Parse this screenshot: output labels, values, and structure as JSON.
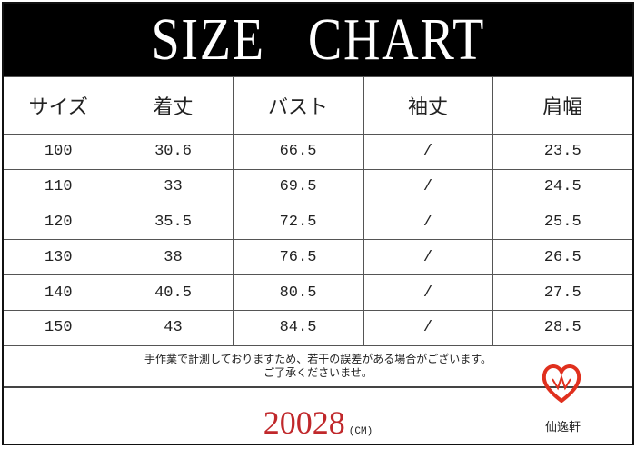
{
  "title": "SIZE   CHART",
  "table": {
    "headers": [
      "サイズ",
      "着丈",
      "バスト",
      "袖丈",
      "肩幅"
    ],
    "rows": [
      [
        "100",
        "30.6",
        "66.5",
        "/",
        "23.5"
      ],
      [
        "110",
        "33",
        "69.5",
        "/",
        "24.5"
      ],
      [
        "120",
        "35.5",
        "72.5",
        "/",
        "25.5"
      ],
      [
        "130",
        "38",
        "76.5",
        "/",
        "26.5"
      ],
      [
        "140",
        "40.5",
        "80.5",
        "/",
        "27.5"
      ],
      [
        "150",
        "43",
        "84.5",
        "/",
        "28.5"
      ]
    ]
  },
  "note": {
    "line1": "手作業で計測しておりますため、若干の誤差がある場合がございます。",
    "line2": "ご了承くださいませ。"
  },
  "product_code": "20028",
  "unit": "(CM)",
  "brand": {
    "name": "仙逸軒",
    "color": "#e0301e"
  },
  "accent_color": "#c0282b"
}
